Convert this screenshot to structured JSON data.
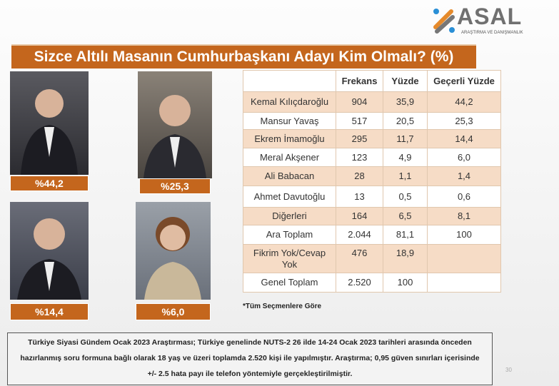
{
  "logo": {
    "name": "ASAL",
    "tagline": "ARAŞTIRMA VE DANIŞMANLIK"
  },
  "title": "Sizce Altılı Masanın Cumhurbaşkanı Adayı Kim Olmalı? (%)",
  "photos": [
    {
      "label": "%44,2"
    },
    {
      "label": "%25,3"
    },
    {
      "label": "%14,4"
    },
    {
      "label": "%6,0"
    }
  ],
  "table": {
    "headers": [
      "",
      "Frekans",
      "Yüzde",
      "Geçerli Yüzde"
    ],
    "rows": [
      [
        "Kemal Kılıçdaroğlu",
        "904",
        "35,9",
        "44,2"
      ],
      [
        "Mansur Yavaş",
        "517",
        "20,5",
        "25,3"
      ],
      [
        "Ekrem İmamoğlu",
        "295",
        "11,7",
        "14,4"
      ],
      [
        "Meral Akşener",
        "123",
        "4,9",
        "6,0"
      ],
      [
        "Ali Babacan",
        "28",
        "1,1",
        "1,4"
      ],
      [
        "Ahmet Davutoğlu",
        "13",
        "0,5",
        "0,6"
      ],
      [
        "Diğerleri",
        "164",
        "6,5",
        "8,1"
      ],
      [
        "Ara Toplam",
        "2.044",
        "81,1",
        "100"
      ],
      [
        "Fikrim Yok/Cevap Yok",
        "476",
        "18,9",
        ""
      ],
      [
        "Genel Toplam",
        "2.520",
        "100",
        ""
      ]
    ]
  },
  "note": "*Tüm Seçmenlere Göre",
  "footer": [
    "Türkiye Siyasi Gündem Ocak 2023 Araştırması; Türkiye genelinde NUTS-2 26 ilde 14-24 Ocak 2023 tarihleri arasında önceden",
    "hazırlanmış soru formuna bağlı olarak 18 yaş ve üzeri toplamda 2.520 kişi ile yapılmıştır. Araştırma; 0,95 güven sınırları içerisinde",
    "+/- 2.5  hata payı ile telefon yöntemiyle gerçekleştirilmiştir."
  ],
  "page_number": "30",
  "colors": {
    "accent": "#c4661d",
    "row_alt": "#f6dcc6"
  }
}
